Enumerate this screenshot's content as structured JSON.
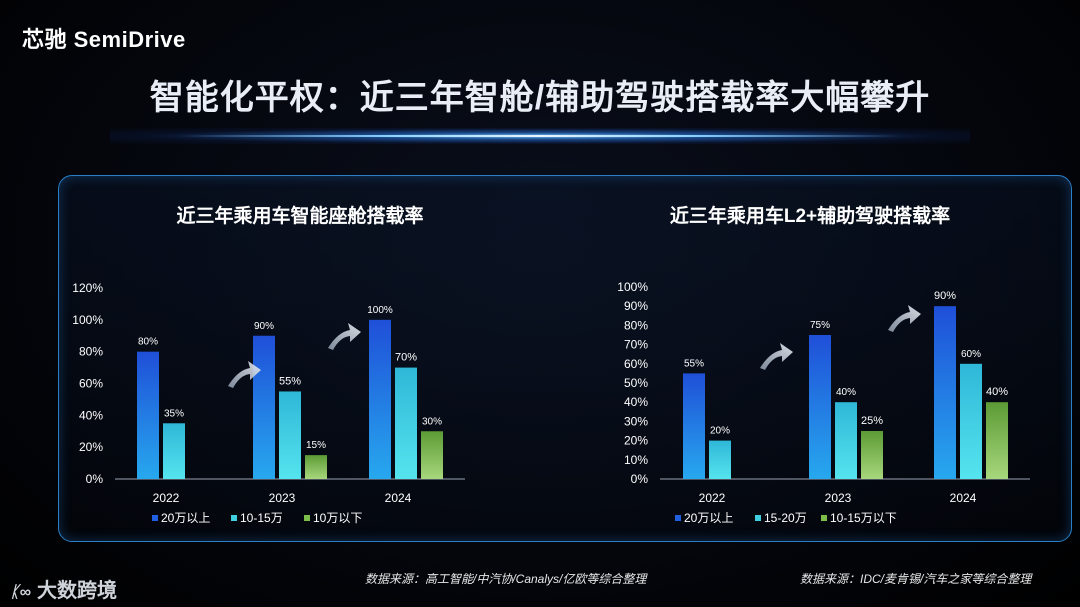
{
  "header": {
    "logo_text": "芯驰 SemiDrive",
    "title": "智能化平权：近三年智舱/辅助驾驶搭载率大幅攀升"
  },
  "footer": {
    "source_left": "数据来源：高工智能/中汽协/Canalys/亿欧等综合整理",
    "source_right": "数据来源：IDC/麦肯锡/汽车之家等综合整理",
    "brand": "大数跨境"
  },
  "colors": {
    "dark_blue": "#1f5fe0",
    "cyan": "#3ed0e0",
    "green": "#7bbf4a"
  },
  "chart_data": [
    {
      "type": "bar",
      "title": "近三年乘用车智能座舱搭载率",
      "categories": [
        "2022",
        "2023",
        "2024"
      ],
      "series": [
        {
          "name": "20万以上",
          "values": [
            80,
            90,
            100
          ],
          "labels": [
            "80%",
            "90%",
            "100%"
          ]
        },
        {
          "name": "10-15万",
          "values": [
            35,
            55,
            70
          ],
          "labels": [
            "35%",
            "55%",
            "70%"
          ]
        },
        {
          "name": "10万以下",
          "values": [
            null,
            15,
            30
          ],
          "labels": [
            "",
            "15%",
            "30%"
          ]
        }
      ],
      "ylim": [
        0,
        120
      ],
      "yticks": [
        "0%",
        "20%",
        "40%",
        "60%",
        "80%",
        "100%",
        "120%"
      ],
      "legend": "bottom"
    },
    {
      "type": "bar",
      "title": "近三年乘用车L2+辅助驾驶搭载率",
      "categories": [
        "2022",
        "2023",
        "2024"
      ],
      "series": [
        {
          "name": "20万以上",
          "values": [
            55,
            75,
            90
          ],
          "labels": [
            "55%",
            "75%",
            "90%"
          ]
        },
        {
          "name": "15-20万",
          "values": [
            20,
            40,
            60
          ],
          "labels": [
            "20%",
            "40%",
            "60%"
          ]
        },
        {
          "name": "10-15万以下",
          "values": [
            null,
            25,
            40
          ],
          "labels": [
            "",
            "25%",
            "40%"
          ]
        }
      ],
      "ylim": [
        0,
        100
      ],
      "yticks": [
        "0%",
        "10%",
        "20%",
        "30%",
        "40%",
        "50%",
        "60%",
        "70%",
        "80%",
        "90%",
        "100%"
      ],
      "legend": "bottom"
    }
  ]
}
